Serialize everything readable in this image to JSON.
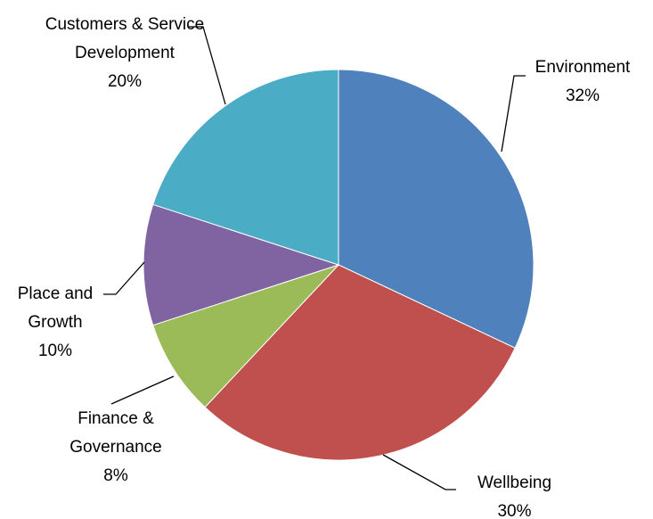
{
  "chart_data": {
    "type": "pie",
    "categories": [
      "Environment",
      "Wellbeing",
      "Finance & Governance",
      "Place and Growth",
      "Customers & Service Development"
    ],
    "values": [
      32,
      30,
      8,
      10,
      20
    ],
    "value_labels": [
      "32%",
      "30%",
      "8%",
      "10%",
      "20%"
    ],
    "colors": [
      "#4f81bd",
      "#c0504d",
      "#9bbb59",
      "#8064a2",
      "#4bacc6"
    ]
  }
}
